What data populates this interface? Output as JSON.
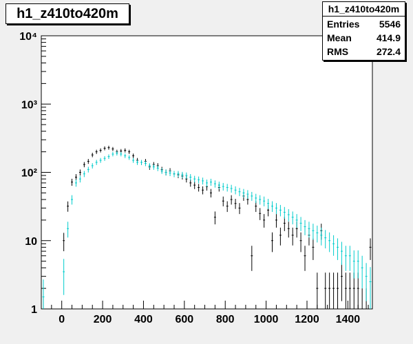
{
  "title": "h1_z410to420m",
  "stats": {
    "header": "h1_z410to420m",
    "rows": [
      {
        "label": "Entries",
        "value": "5546"
      },
      {
        "label": "Mean",
        "value": "414.9"
      },
      {
        "label": "RMS",
        "value": "272.4"
      }
    ]
  },
  "chart_data": {
    "type": "scatter",
    "title": "h1_z410to420m",
    "xlabel": "",
    "ylabel": "",
    "xlim": [
      -100,
      1520
    ],
    "ylim": [
      1,
      10000
    ],
    "y_scale": "log",
    "grid": false,
    "x_ticks": [
      0,
      200,
      400,
      600,
      800,
      1000,
      1200,
      1400
    ],
    "x_tick_labels": [
      "0",
      "200",
      "400",
      "600",
      "800",
      "1000",
      "1200",
      "1400"
    ],
    "y_ticks": [
      1,
      10,
      100,
      1000,
      10000
    ],
    "y_tick_labels": [
      "1",
      "10",
      "10²",
      "10³",
      "10⁴"
    ],
    "series": [
      {
        "color": "#000000",
        "x": [
          -90,
          10,
          30,
          50,
          70,
          90,
          110,
          130,
          150,
          170,
          190,
          210,
          230,
          250,
          270,
          290,
          310,
          330,
          350,
          370,
          390,
          410,
          430,
          450,
          470,
          490,
          510,
          530,
          550,
          570,
          590,
          610,
          630,
          650,
          670,
          690,
          710,
          730,
          750,
          770,
          790,
          810,
          830,
          850,
          870,
          890,
          910,
          930,
          950,
          970,
          990,
          1010,
          1030,
          1050,
          1070,
          1090,
          1110,
          1130,
          1150,
          1170,
          1190,
          1210,
          1230,
          1250,
          1270,
          1290,
          1310,
          1330,
          1350,
          1370,
          1390,
          1410,
          1430,
          1450,
          1470,
          1490,
          1510
        ],
        "y": [
          1,
          10,
          32,
          72,
          85,
          100,
          130,
          145,
          180,
          200,
          210,
          225,
          230,
          220,
          200,
          205,
          210,
          200,
          175,
          150,
          140,
          145,
          120,
          130,
          125,
          110,
          100,
          105,
          95,
          92,
          88,
          80,
          70,
          65,
          60,
          55,
          62,
          50,
          22,
          60,
          38,
          32,
          40,
          35,
          30,
          45,
          40,
          6,
          32,
          25,
          20,
          28,
          10,
          20,
          12,
          18,
          15,
          12,
          15,
          10,
          6,
          12,
          8,
          2,
          14,
          2,
          2,
          2,
          2,
          3,
          2,
          2,
          2,
          2,
          1,
          1,
          8
        ],
        "y_err": [
          0.5,
          3,
          5.5,
          8.5,
          9.2,
          10,
          11.4,
          12,
          13.4,
          14.1,
          14.5,
          15,
          15.2,
          14.8,
          14.1,
          14.3,
          14.5,
          14.1,
          13.2,
          12.2,
          11.8,
          12,
          11,
          11.4,
          11.2,
          10.5,
          10,
          10.2,
          9.7,
          9.6,
          9.4,
          8.9,
          8.4,
          8.1,
          7.7,
          7.4,
          7.9,
          7.1,
          4.7,
          7.7,
          6.2,
          5.7,
          6.3,
          5.9,
          5.5,
          6.7,
          6.3,
          2.4,
          5.7,
          5,
          4.5,
          5.3,
          3.2,
          4.5,
          3.5,
          4.2,
          3.9,
          3.5,
          3.9,
          3.2,
          2.4,
          3.5,
          2.8,
          1.4,
          3.7,
          1.4,
          1.4,
          1.4,
          1.4,
          1.7,
          1.4,
          1.4,
          1.4,
          1.4,
          1,
          1,
          2.8
        ]
      },
      {
        "color": "#00cccc",
        "x": [
          -90,
          10,
          30,
          50,
          70,
          90,
          110,
          130,
          150,
          170,
          190,
          210,
          230,
          250,
          270,
          290,
          310,
          330,
          350,
          370,
          390,
          410,
          430,
          450,
          470,
          490,
          510,
          530,
          550,
          570,
          590,
          610,
          630,
          650,
          670,
          690,
          710,
          730,
          750,
          770,
          790,
          810,
          830,
          850,
          870,
          890,
          910,
          930,
          950,
          970,
          990,
          1010,
          1030,
          1050,
          1070,
          1090,
          1110,
          1130,
          1150,
          1170,
          1190,
          1210,
          1230,
          1250,
          1270,
          1290,
          1310,
          1330,
          1350,
          1370,
          1390,
          1410,
          1430,
          1450,
          1470,
          1490,
          1510
        ],
        "y": [
          1.5,
          3.5,
          15,
          40,
          70,
          80,
          95,
          110,
          125,
          140,
          150,
          160,
          170,
          185,
          190,
          185,
          175,
          165,
          150,
          140,
          140,
          135,
          125,
          120,
          115,
          105,
          100,
          98,
          95,
          95,
          92,
          90,
          85,
          80,
          78,
          75,
          70,
          72,
          68,
          65,
          62,
          60,
          58,
          55,
          52,
          50,
          48,
          45,
          42,
          40,
          38,
          35,
          32,
          30,
          28,
          26,
          24,
          22,
          20,
          18,
          16,
          15,
          14,
          13,
          12,
          11,
          10,
          9,
          8,
          7,
          6,
          6,
          5,
          5,
          4,
          3,
          2.5
        ],
        "y_err": [
          1.2,
          1.9,
          3.9,
          6.3,
          8.4,
          8.9,
          9.7,
          10.5,
          11.2,
          11.8,
          12.2,
          12.6,
          13,
          13.6,
          13.8,
          13.6,
          13.2,
          12.8,
          12.2,
          11.8,
          11.8,
          11.6,
          11.2,
          11,
          10.7,
          10.2,
          10,
          9.9,
          9.7,
          9.7,
          9.6,
          9.5,
          9.2,
          8.9,
          8.8,
          8.7,
          8.4,
          8.5,
          8.2,
          8.1,
          7.9,
          7.7,
          7.6,
          7.4,
          7.2,
          7.1,
          6.9,
          6.7,
          6.5,
          6.3,
          6.2,
          5.9,
          5.7,
          5.5,
          5.3,
          5.1,
          4.9,
          4.7,
          4.5,
          4.2,
          4,
          3.9,
          3.7,
          3.6,
          3.5,
          3.3,
          3.2,
          3,
          2.8,
          2.6,
          2.4,
          2.4,
          2.2,
          2.2,
          2,
          1.7,
          1.6
        ]
      }
    ]
  }
}
